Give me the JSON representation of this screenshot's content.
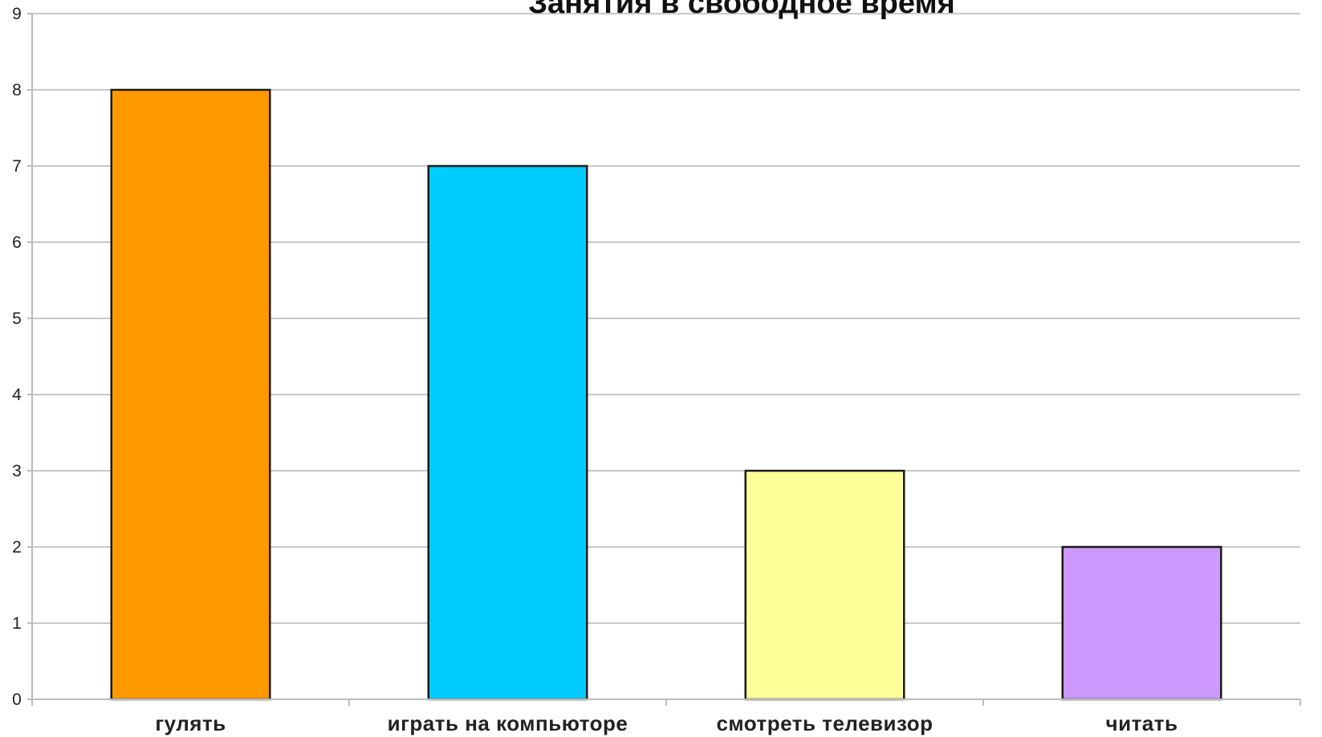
{
  "chart_data": {
    "type": "bar",
    "title": "Занятия в свободное время",
    "categories": [
      "гулять",
      "играть на компьютоpe",
      "смотреть телевизор",
      "читать"
    ],
    "values": [
      8,
      7,
      3,
      2
    ],
    "bar_colors": [
      "#FF9900",
      "#00CCFF",
      "#FFFF99",
      "#CC99FF"
    ],
    "xlabel": "",
    "ylabel": "",
    "ylim": [
      0,
      9
    ],
    "yticks": [
      0,
      1,
      2,
      3,
      4,
      5,
      6,
      7,
      8,
      9
    ],
    "grid": true,
    "legend": "none"
  }
}
